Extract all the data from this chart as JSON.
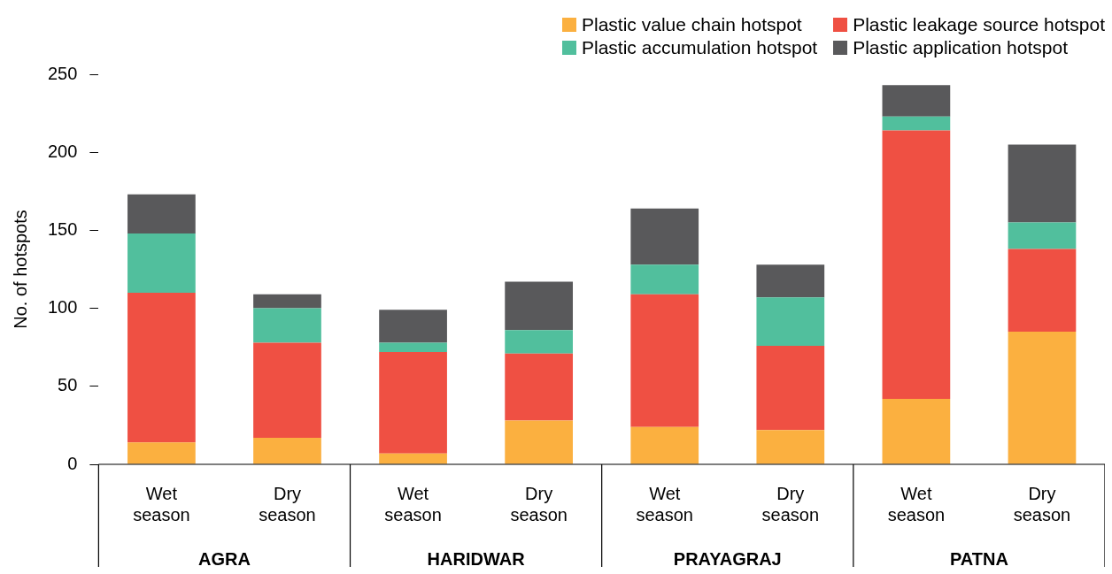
{
  "chart_data": {
    "type": "bar",
    "stacked": true,
    "ylabel": "No. of hotspots",
    "categories": [
      "Wet season",
      "Dry season",
      "Wet season",
      "Dry season",
      "Wet season",
      "Dry season",
      "Wet season",
      "Dry season"
    ],
    "annotations": [
      "AGRA",
      "HARIDWAR",
      "PRAYAGRAJ",
      "PATNA"
    ],
    "series": [
      {
        "name": "Plastic value chain hotspot",
        "color": "#fbb040",
        "values": [
          14,
          17,
          7,
          28,
          24,
          22,
          42,
          85
        ]
      },
      {
        "name": "Plastic leakage source hotspot",
        "color": "#ef5043",
        "values": [
          96,
          61,
          65,
          43,
          85,
          54,
          172,
          53
        ]
      },
      {
        "name": "Plastic accumulation hotspot",
        "color": "#51bf9d",
        "values": [
          38,
          22,
          6,
          15,
          19,
          31,
          9,
          17
        ]
      },
      {
        "name": "Plastic application hotspot",
        "color": "#59595b",
        "values": [
          25,
          9,
          21,
          31,
          36,
          21,
          20,
          50
        ]
      }
    ],
    "ylim": [
      0,
      250
    ],
    "yticks": [
      0,
      50,
      100,
      150,
      200,
      250
    ],
    "grid": false,
    "legend": "top right"
  }
}
